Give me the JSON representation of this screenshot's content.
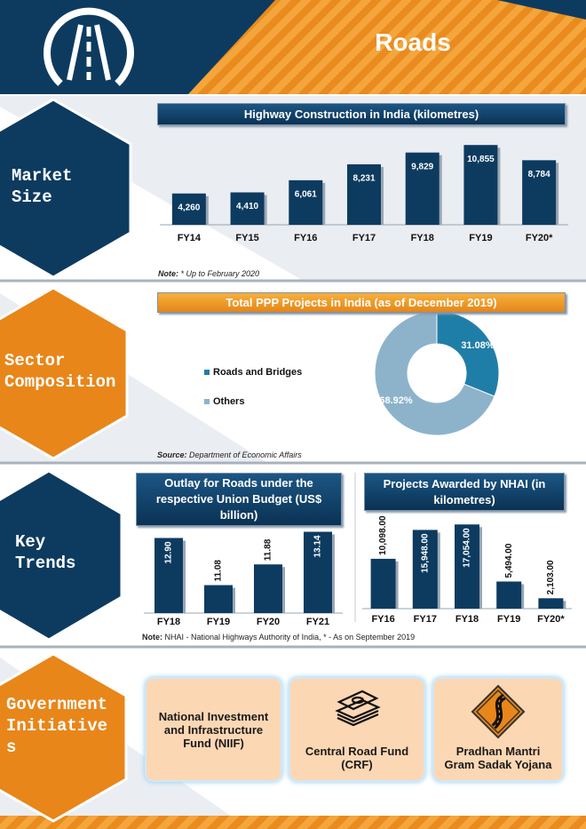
{
  "header": {
    "title": "Roads"
  },
  "sections": [
    {
      "label": "Market Size",
      "note_label": "Note:",
      "note": "* Up to February 2020"
    },
    {
      "label": "Sector Composition",
      "note_label": "Source:",
      "note": "Department of Economic Affairs"
    },
    {
      "label": "Key Trends",
      "note_label": "Note:",
      "note": "NHAI - National Highways Authority of India, * - As on September 2019"
    },
    {
      "label": "Government Initiatives"
    }
  ],
  "chart_data": [
    {
      "type": "bar",
      "title": "Highway Construction in India (kilometres)",
      "categories": [
        "FY14",
        "FY15",
        "FY16",
        "FY17",
        "FY18",
        "FY19",
        "FY20*"
      ],
      "values": [
        4260,
        4410,
        6061,
        8231,
        9829,
        10855,
        8784
      ],
      "value_labels": [
        "4,260",
        "4,410",
        "6,061",
        "8,231",
        "9,829",
        "10,855",
        "8,784"
      ],
      "color": "#0d3b60",
      "ylim": [
        0,
        11000
      ]
    },
    {
      "type": "pie",
      "title": "Total PPP Projects in India (as of December 2019)",
      "categories": [
        "Roads and Bridges",
        "Others"
      ],
      "values": [
        31.08,
        68.92
      ],
      "value_labels": [
        "31.08%",
        "68.92%"
      ],
      "colors": [
        "#1f7ea8",
        "#8db3cb"
      ],
      "donut": true
    },
    {
      "type": "bar",
      "title": "Outlay for Roads under the respective Union Budget (US$ billion)",
      "categories": [
        "FY18",
        "FY19",
        "FY20",
        "FY21"
      ],
      "values": [
        12.9,
        11.08,
        11.88,
        13.14
      ],
      "value_labels": [
        "12.90",
        "11.08",
        "11.88",
        "13.14"
      ],
      "color": "#0d3b60",
      "ylim": [
        10,
        13.5
      ]
    },
    {
      "type": "bar",
      "title": "Projects Awarded by NHAI (in kilometres)",
      "categories": [
        "FY16",
        "FY17",
        "FY18",
        "FY19",
        "FY20*"
      ],
      "values": [
        10098,
        15948,
        17054,
        5494,
        2103
      ],
      "value_labels": [
        "10,098.00",
        "15,948.00",
        "17,054.00",
        "5,494.00",
        "2,103.00"
      ],
      "color": "#0d3b60",
      "ylim": [
        0,
        18000
      ]
    }
  ],
  "initiatives": [
    {
      "label": "National Investment and Infrastructure Fund (NIIF)"
    },
    {
      "label": "Central Road Fund (CRF)"
    },
    {
      "label": "Pradhan Mantri Gram Sadak Yojana"
    }
  ]
}
